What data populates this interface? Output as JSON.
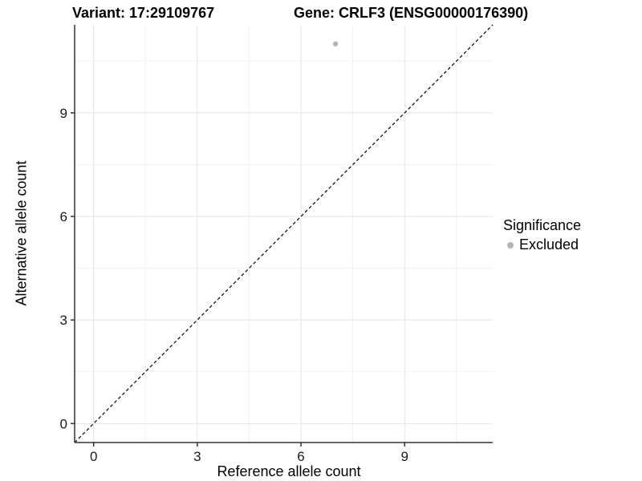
{
  "header": {
    "title_left": "Variant: 17:29109767",
    "title_right": "Gene: CRLF3 (ENSG00000176390)"
  },
  "axes": {
    "x_label": "Reference allele count",
    "y_label": "Alternative allele count"
  },
  "legend": {
    "title": "Significance",
    "items": [
      {
        "label": "Excluded",
        "color": "#b5b5b5"
      }
    ]
  },
  "chart_data": {
    "type": "scatter",
    "title": "Variant: 17:29109767 — Gene: CRLF3 (ENSG00000176390)",
    "xlabel": "Reference allele count",
    "ylabel": "Alternative allele count",
    "xlim": [
      -0.55,
      11.55
    ],
    "ylim": [
      -0.55,
      11.55
    ],
    "xticks": [
      0,
      3,
      6,
      9
    ],
    "yticks": [
      0,
      3,
      6,
      9
    ],
    "minor_ticks": [
      1.5,
      4.5,
      7.5,
      10.5
    ],
    "grid": "major+minor",
    "legend_position": "right",
    "series": [
      {
        "name": "Excluded",
        "color": "#b5b5b5",
        "point_radius": 3.2,
        "points": [
          [
            7,
            11
          ]
        ]
      }
    ],
    "reference_line": {
      "equation": "y = x",
      "style": "dashed",
      "color": "#000000",
      "from": [
        -0.55,
        -0.55
      ],
      "to": [
        11.55,
        11.55
      ]
    },
    "colors": {
      "grid_major": "#e4e4e4",
      "grid_minor": "#f1f1f1",
      "axis": "#333333",
      "tick_text": "#1a1a1a",
      "point": "#b5b5b5",
      "background": "#ffffff"
    }
  }
}
